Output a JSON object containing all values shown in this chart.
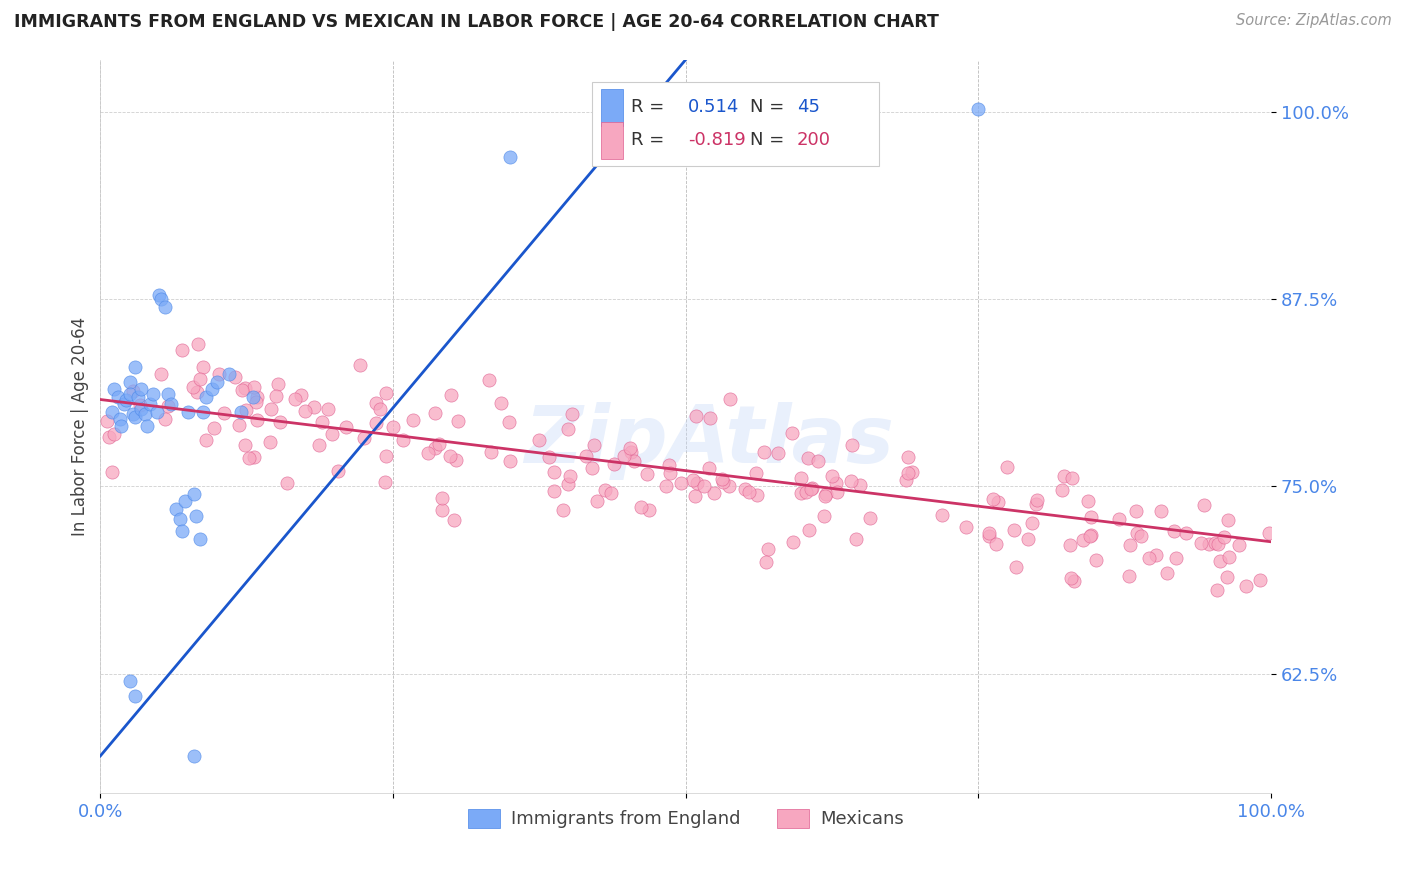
{
  "title": "IMMIGRANTS FROM ENGLAND VS MEXICAN IN LABOR FORCE | AGE 20-64 CORRELATION CHART",
  "source": "Source: ZipAtlas.com",
  "ylabel": "In Labor Force | Age 20-64",
  "yticks": [
    "62.5%",
    "75.0%",
    "87.5%",
    "100.0%"
  ],
  "ytick_vals": [
    0.625,
    0.75,
    0.875,
    1.0
  ],
  "xlim": [
    0.0,
    1.0
  ],
  "ylim": [
    0.545,
    1.035
  ],
  "england_R": 0.514,
  "england_N": 45,
  "mexican_R": -0.819,
  "mexican_N": 200,
  "england_dot_color": "#7baaf7",
  "england_edge_color": "#4a86e8",
  "mexican_dot_color": "#f7a7c0",
  "mexican_edge_color": "#e06090",
  "trend_england_color": "#1a56cc",
  "trend_mexican_color": "#cc3366",
  "background_color": "#ffffff",
  "title_color": "#222222",
  "axis_label_color": "#4a86e8",
  "watermark": "ZipAtlas",
  "legend_R_color": "#222222",
  "legend_val_eng_color": "#1a56cc",
  "legend_val_mex_color": "#cc3366"
}
